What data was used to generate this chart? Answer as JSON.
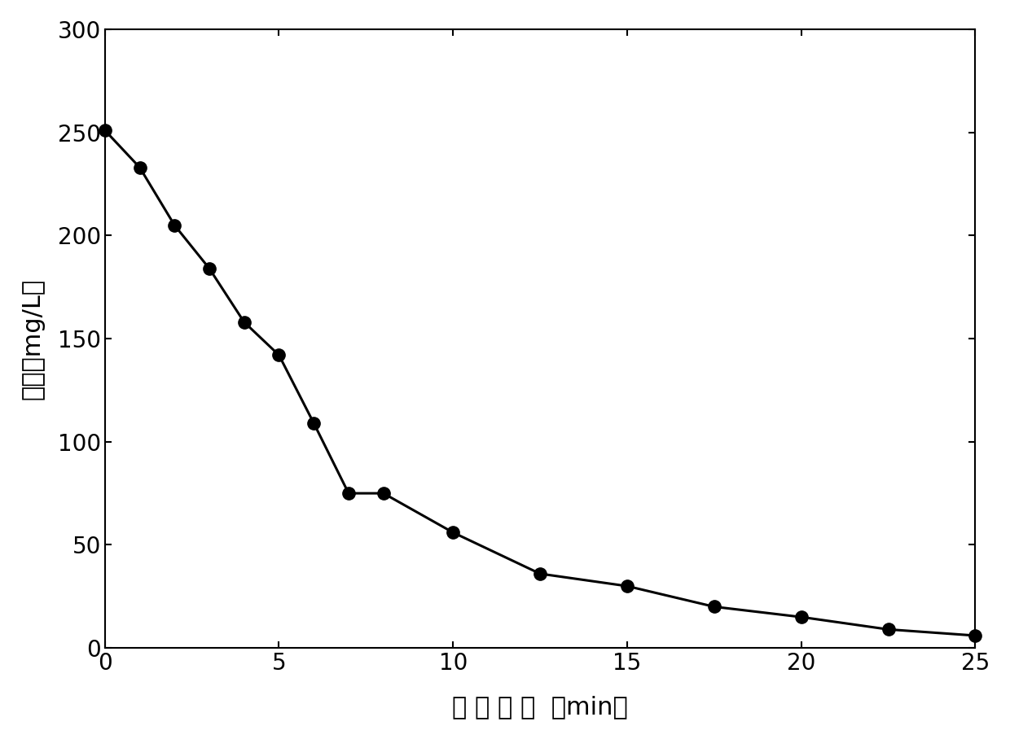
{
  "x": [
    0,
    1,
    2,
    3,
    4,
    5,
    6,
    7,
    8,
    10,
    12.5,
    15,
    17.5,
    20,
    22.5,
    25
  ],
  "y": [
    251,
    233,
    205,
    184,
    158,
    142,
    109,
    75,
    75,
    56,
    36,
    30,
    20,
    15,
    9,
    6
  ],
  "xlabel": "降 解 时 间  （min）",
  "ylabel": "浓度（mg/L）",
  "xlim": [
    0,
    25
  ],
  "ylim": [
    0,
    300
  ],
  "xticks": [
    0,
    5,
    10,
    15,
    20,
    25
  ],
  "yticks": [
    0,
    50,
    100,
    150,
    200,
    250,
    300
  ],
  "line_color": "#000000",
  "marker_color": "#000000",
  "marker_size": 11,
  "linewidth": 2.2,
  "background_color": "#ffffff",
  "xlabel_fontsize": 22,
  "ylabel_fontsize": 22,
  "tick_fontsize": 20
}
